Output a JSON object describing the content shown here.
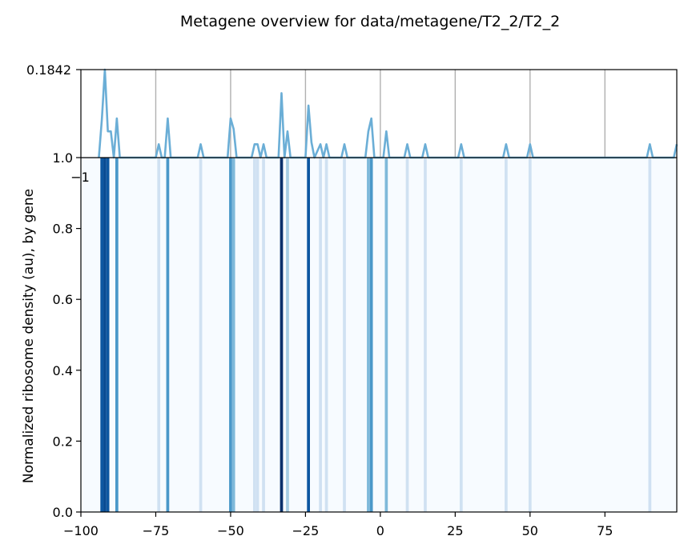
{
  "chart_data": {
    "title": "Metagene overview for data/metagene/T2_2/T2_2",
    "top_panel": {
      "type": "line",
      "ylim": [
        0,
        0.1842
      ],
      "y_top_tick_label": "0.1842",
      "x_partial_tick_label": "−1",
      "vertical_grid_x": [
        -75,
        -50,
        -25,
        0,
        25,
        50,
        75
      ],
      "line_color": "#6baed6",
      "points": [
        {
          "x": -94,
          "y": 0
        },
        {
          "x": -93,
          "y": 0.08
        },
        {
          "x": -92,
          "y": 0.1842
        },
        {
          "x": -91,
          "y": 0.055
        },
        {
          "x": -90,
          "y": 0.055
        },
        {
          "x": -89,
          "y": 0
        },
        {
          "x": -88,
          "y": 0.082
        },
        {
          "x": -87,
          "y": 0
        },
        {
          "x": -75,
          "y": 0
        },
        {
          "x": -74,
          "y": 0.028
        },
        {
          "x": -73,
          "y": 0
        },
        {
          "x": -72,
          "y": 0
        },
        {
          "x": -71,
          "y": 0.082
        },
        {
          "x": -70,
          "y": 0
        },
        {
          "x": -61,
          "y": 0
        },
        {
          "x": -60,
          "y": 0.028
        },
        {
          "x": -59,
          "y": 0
        },
        {
          "x": -51,
          "y": 0
        },
        {
          "x": -50,
          "y": 0.082
        },
        {
          "x": -49,
          "y": 0.06
        },
        {
          "x": -48,
          "y": 0
        },
        {
          "x": -43,
          "y": 0
        },
        {
          "x": -42,
          "y": 0.028
        },
        {
          "x": -41,
          "y": 0.028
        },
        {
          "x": -40,
          "y": 0
        },
        {
          "x": -39,
          "y": 0.028
        },
        {
          "x": -38,
          "y": 0
        },
        {
          "x": -34,
          "y": 0
        },
        {
          "x": -33,
          "y": 0.135
        },
        {
          "x": -32,
          "y": 0
        },
        {
          "x": -31,
          "y": 0.055
        },
        {
          "x": -30,
          "y": 0
        },
        {
          "x": -25,
          "y": 0
        },
        {
          "x": -24,
          "y": 0.109
        },
        {
          "x": -23,
          "y": 0.032
        },
        {
          "x": -22,
          "y": 0
        },
        {
          "x": -20,
          "y": 0.028
        },
        {
          "x": -19,
          "y": 0
        },
        {
          "x": -18,
          "y": 0.028
        },
        {
          "x": -17,
          "y": 0
        },
        {
          "x": -13,
          "y": 0
        },
        {
          "x": -12,
          "y": 0.028
        },
        {
          "x": -11,
          "y": 0
        },
        {
          "x": -5,
          "y": 0
        },
        {
          "x": -4,
          "y": 0.055
        },
        {
          "x": -3,
          "y": 0.082
        },
        {
          "x": -2,
          "y": 0
        },
        {
          "x": 1,
          "y": 0
        },
        {
          "x": 2,
          "y": 0.055
        },
        {
          "x": 3,
          "y": 0
        },
        {
          "x": 8,
          "y": 0
        },
        {
          "x": 9,
          "y": 0.028
        },
        {
          "x": 10,
          "y": 0
        },
        {
          "x": 14,
          "y": 0
        },
        {
          "x": 15,
          "y": 0.028
        },
        {
          "x": 16,
          "y": 0
        },
        {
          "x": 26,
          "y": 0
        },
        {
          "x": 27,
          "y": 0.028
        },
        {
          "x": 28,
          "y": 0
        },
        {
          "x": 41,
          "y": 0
        },
        {
          "x": 42,
          "y": 0.028
        },
        {
          "x": 43,
          "y": 0
        },
        {
          "x": 49,
          "y": 0
        },
        {
          "x": 50,
          "y": 0.028
        },
        {
          "x": 51,
          "y": 0
        },
        {
          "x": 89,
          "y": 0
        },
        {
          "x": 90,
          "y": 0.028
        },
        {
          "x": 91,
          "y": 0
        },
        {
          "x": 98,
          "y": 0
        },
        {
          "x": 99,
          "y": 0.028
        }
      ]
    },
    "bottom_panel": {
      "type": "heatmap",
      "ylabel": "Normalized ribosome density (au), by gene",
      "xlim": [
        -100,
        99
      ],
      "ylim": [
        0,
        1.0
      ],
      "x_ticks": [
        -100,
        -75,
        -50,
        -25,
        0,
        25,
        50,
        75
      ],
      "x_tick_labels": [
        "−100",
        "−75",
        "−50",
        "−25",
        "0",
        "25",
        "50",
        "75"
      ],
      "y_ticks": [
        0.0,
        0.2,
        0.4,
        0.6,
        0.8,
        1.0
      ],
      "y_tick_labels": [
        "0.0",
        "0.2",
        "0.4",
        "0.6",
        "0.8",
        "1.0"
      ],
      "background_color": "#f7fbff",
      "stripes": [
        {
          "x": -93,
          "v": 0.85
        },
        {
          "x": -92,
          "v": 0.9
        },
        {
          "x": -91,
          "v": 0.85
        },
        {
          "x": -88,
          "v": 0.6
        },
        {
          "x": -74,
          "v": 0.2
        },
        {
          "x": -71,
          "v": 0.6
        },
        {
          "x": -60,
          "v": 0.2
        },
        {
          "x": -50,
          "v": 0.6
        },
        {
          "x": -49,
          "v": 0.45
        },
        {
          "x": -42,
          "v": 0.2
        },
        {
          "x": -41,
          "v": 0.2
        },
        {
          "x": -39,
          "v": 0.2
        },
        {
          "x": -33,
          "v": 1.0
        },
        {
          "x": -31,
          "v": 0.35
        },
        {
          "x": -24,
          "v": 0.85
        },
        {
          "x": -20,
          "v": 0.2
        },
        {
          "x": -18,
          "v": 0.2
        },
        {
          "x": -12,
          "v": 0.2
        },
        {
          "x": -4,
          "v": 0.45
        },
        {
          "x": -3,
          "v": 0.6
        },
        {
          "x": 2,
          "v": 0.45
        },
        {
          "x": 9,
          "v": 0.2
        },
        {
          "x": 15,
          "v": 0.2
        },
        {
          "x": 27,
          "v": 0.2
        },
        {
          "x": 42,
          "v": 0.2
        },
        {
          "x": 50,
          "v": 0.2
        },
        {
          "x": 90,
          "v": 0.2
        }
      ]
    }
  }
}
